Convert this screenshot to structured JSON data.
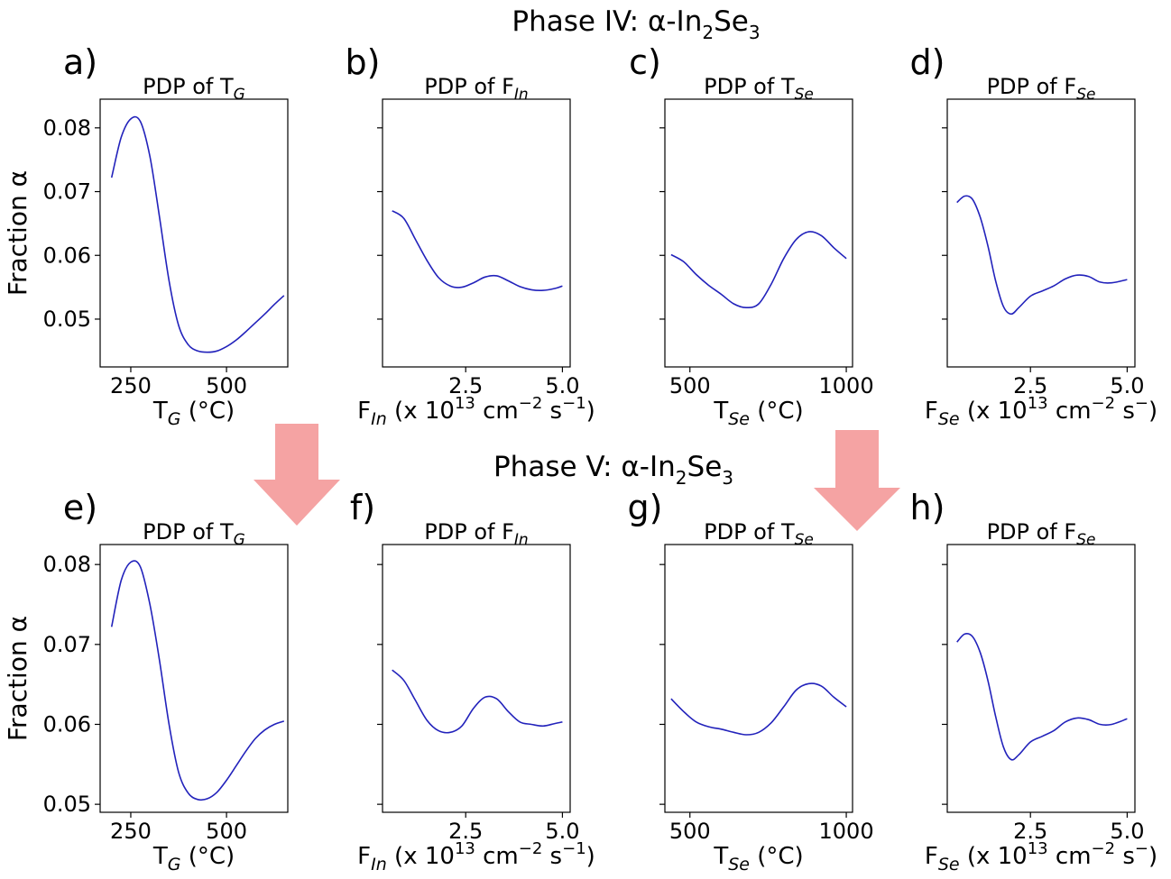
{
  "figure": {
    "phase_titles": [
      {
        "prefix": "Phase IV: α-In",
        "sub1": "2",
        "mid": "Se",
        "sub2": "3"
      },
      {
        "prefix": "Phase V: α-In",
        "sub1": "2",
        "mid": "Se",
        "sub2": "3"
      }
    ],
    "arrow_color": "#f5a3a3",
    "curve_color": "#2222bb"
  },
  "chart_data": [
    {
      "type": "line",
      "panel": "a)",
      "row": 0,
      "col": 0,
      "title": {
        "base": "PDP of T",
        "sub": "G"
      },
      "xlabel": {
        "base": "T",
        "sub": "G",
        "rest": " (°C)"
      },
      "ylabel": "Fraction α",
      "xlim": [
        170,
        660
      ],
      "ylim": [
        0.0425,
        0.0845
      ],
      "xticks": [
        250,
        500
      ],
      "xtick_labels": [
        "250",
        "500"
      ],
      "yticks": [
        0.05,
        0.06,
        0.07,
        0.08
      ],
      "ytick_labels": [
        "0.05",
        "0.06",
        "0.07",
        "0.08"
      ],
      "x": [
        200,
        225,
        250,
        275,
        300,
        325,
        350,
        375,
        400,
        425,
        450,
        475,
        500,
        525,
        550,
        575,
        600,
        625,
        650
      ],
      "y": [
        0.0722,
        0.0785,
        0.0814,
        0.081,
        0.0755,
        0.066,
        0.056,
        0.049,
        0.046,
        0.045,
        0.0448,
        0.045,
        0.0457,
        0.0467,
        0.048,
        0.0494,
        0.0508,
        0.0523,
        0.0537
      ]
    },
    {
      "type": "line",
      "panel": "b)",
      "row": 0,
      "col": 1,
      "title": {
        "base": "PDP of F",
        "sub": "In"
      },
      "xlabel": {
        "base": "F",
        "sub": "In",
        "rest": " (x 10",
        "sup": "13",
        "rest2": " cm",
        "sup2": "−2",
        "rest3": " s",
        "sup3": "−1",
        "rest4": ")"
      },
      "ylabel": "",
      "xlim": [
        0.35,
        5.2
      ],
      "ylim": [
        0.0425,
        0.0845
      ],
      "xticks": [
        2.5,
        5.0
      ],
      "xtick_labels": [
        "2.5",
        "5.0"
      ],
      "yticks": [
        0.05,
        0.06,
        0.07,
        0.08
      ],
      "ytick_labels": [],
      "x": [
        0.6,
        0.9,
        1.2,
        1.5,
        1.8,
        2.1,
        2.4,
        2.7,
        3.0,
        3.3,
        3.6,
        3.9,
        4.2,
        4.5,
        4.8,
        5.0
      ],
      "y": [
        0.067,
        0.0658,
        0.0625,
        0.0592,
        0.0565,
        0.0552,
        0.055,
        0.0557,
        0.0566,
        0.0568,
        0.056,
        0.0551,
        0.0546,
        0.0545,
        0.0548,
        0.0552
      ]
    },
    {
      "type": "line",
      "panel": "c)",
      "row": 0,
      "col": 2,
      "title": {
        "base": "PDP of T",
        "sub": "Se"
      },
      "xlabel": {
        "base": "T",
        "sub": "Se",
        "rest": " (°C)"
      },
      "ylabel": "",
      "xlim": [
        420,
        1020
      ],
      "ylim": [
        0.0425,
        0.0845
      ],
      "xticks": [
        500,
        1000
      ],
      "xtick_labels": [
        "500",
        "1000"
      ],
      "yticks": [
        0.05,
        0.06,
        0.07,
        0.08
      ],
      "ytick_labels": [],
      "x": [
        440,
        480,
        520,
        560,
        600,
        640,
        680,
        720,
        760,
        800,
        840,
        880,
        920,
        960,
        1000
      ],
      "y": [
        0.0601,
        0.059,
        0.057,
        0.0553,
        0.0539,
        0.0524,
        0.0518,
        0.0524,
        0.0555,
        0.0595,
        0.0625,
        0.0637,
        0.0631,
        0.0612,
        0.0595
      ]
    },
    {
      "type": "line",
      "panel": "d)",
      "row": 0,
      "col": 3,
      "title": {
        "base": "PDP of F",
        "sub": "Se"
      },
      "xlabel": {
        "base": "F",
        "sub": "Se",
        "rest": " (x 10",
        "sup": "13",
        "rest2": " cm",
        "sup2": "−2",
        "rest3": " s",
        "sup3": "−",
        "rest4": ")"
      },
      "ylabel": "",
      "xlim": [
        0.35,
        5.2
      ],
      "ylim": [
        0.0425,
        0.0845
      ],
      "xticks": [
        2.5,
        5.0
      ],
      "xtick_labels": [
        "2.5",
        "5.0"
      ],
      "yticks": [
        0.05,
        0.06,
        0.07,
        0.08
      ],
      "ytick_labels": [],
      "x": [
        0.6,
        0.8,
        1.0,
        1.2,
        1.4,
        1.6,
        1.8,
        2.0,
        2.2,
        2.5,
        2.8,
        3.1,
        3.4,
        3.7,
        4.0,
        4.3,
        4.6,
        5.0
      ],
      "y": [
        0.0683,
        0.0693,
        0.0688,
        0.066,
        0.0615,
        0.056,
        0.052,
        0.0508,
        0.0518,
        0.0536,
        0.0544,
        0.0552,
        0.0563,
        0.0569,
        0.0567,
        0.0558,
        0.0557,
        0.0562
      ]
    },
    {
      "type": "line",
      "panel": "e)",
      "row": 1,
      "col": 0,
      "title": {
        "base": "PDP of T",
        "sub": "G"
      },
      "xlabel": {
        "base": "T",
        "sub": "G",
        "rest": " (°C)"
      },
      "ylabel": "Fraction α",
      "xlim": [
        170,
        660
      ],
      "ylim": [
        0.049,
        0.0825
      ],
      "xticks": [
        250,
        500
      ],
      "xtick_labels": [
        "250",
        "500"
      ],
      "yticks": [
        0.05,
        0.06,
        0.07,
        0.08
      ],
      "ytick_labels": [
        "0.05",
        "0.06",
        "0.07",
        "0.08"
      ],
      "x": [
        200,
        225,
        250,
        275,
        300,
        325,
        350,
        375,
        400,
        425,
        450,
        475,
        500,
        525,
        550,
        575,
        600,
        625,
        650
      ],
      "y": [
        0.0722,
        0.078,
        0.0803,
        0.0797,
        0.075,
        0.068,
        0.06,
        0.054,
        0.0514,
        0.0506,
        0.0507,
        0.0515,
        0.053,
        0.0548,
        0.0566,
        0.0582,
        0.0593,
        0.06,
        0.0604
      ]
    },
    {
      "type": "line",
      "panel": "f)",
      "row": 1,
      "col": 1,
      "title": {
        "base": "PDP of F",
        "sub": "In"
      },
      "xlabel": {
        "base": "F",
        "sub": "In",
        "rest": " (x 10",
        "sup": "13",
        "rest2": " cm",
        "sup2": "−2",
        "rest3": " s",
        "sup3": "−1",
        "rest4": ")"
      },
      "ylabel": "",
      "xlim": [
        0.35,
        5.2
      ],
      "ylim": [
        0.049,
        0.0825
      ],
      "xticks": [
        2.5,
        5.0
      ],
      "xtick_labels": [
        "2.5",
        "5.0"
      ],
      "yticks": [
        0.05,
        0.06,
        0.07,
        0.08
      ],
      "ytick_labels": [],
      "x": [
        0.6,
        0.9,
        1.2,
        1.5,
        1.8,
        2.1,
        2.4,
        2.7,
        3.0,
        3.3,
        3.6,
        3.9,
        4.2,
        4.5,
        4.8,
        5.0
      ],
      "y": [
        0.0668,
        0.0655,
        0.063,
        0.0605,
        0.0592,
        0.059,
        0.0598,
        0.062,
        0.0634,
        0.0632,
        0.0616,
        0.0603,
        0.06,
        0.0598,
        0.0601,
        0.0603
      ]
    },
    {
      "type": "line",
      "panel": "g)",
      "row": 1,
      "col": 2,
      "title": {
        "base": "PDP of T",
        "sub": "Se"
      },
      "xlabel": {
        "base": "T",
        "sub": "Se",
        "rest": " (°C)"
      },
      "ylabel": "",
      "xlim": [
        420,
        1020
      ],
      "ylim": [
        0.049,
        0.0825
      ],
      "xticks": [
        500,
        1000
      ],
      "xtick_labels": [
        "500",
        "1000"
      ],
      "yticks": [
        0.05,
        0.06,
        0.07,
        0.08
      ],
      "ytick_labels": [],
      "x": [
        440,
        480,
        520,
        560,
        600,
        640,
        680,
        720,
        760,
        800,
        840,
        880,
        920,
        960,
        1000
      ],
      "y": [
        0.0632,
        0.0616,
        0.0603,
        0.0597,
        0.0594,
        0.059,
        0.0587,
        0.059,
        0.0602,
        0.0622,
        0.0643,
        0.0651,
        0.0648,
        0.0634,
        0.0622
      ]
    },
    {
      "type": "line",
      "panel": "h)",
      "row": 1,
      "col": 3,
      "title": {
        "base": "PDP of F",
        "sub": "Se"
      },
      "xlabel": {
        "base": "F",
        "sub": "Se",
        "rest": " (x 10",
        "sup": "13",
        "rest2": " cm",
        "sup2": "−2",
        "rest3": " s",
        "sup3": "−",
        "rest4": ")"
      },
      "ylabel": "",
      "xlim": [
        0.35,
        5.2
      ],
      "ylim": [
        0.049,
        0.0825
      ],
      "xticks": [
        2.5,
        5.0
      ],
      "xtick_labels": [
        "2.5",
        "5.0"
      ],
      "yticks": [
        0.05,
        0.06,
        0.07,
        0.08
      ],
      "ytick_labels": [],
      "x": [
        0.6,
        0.8,
        1.0,
        1.2,
        1.4,
        1.6,
        1.8,
        2.0,
        2.2,
        2.5,
        2.8,
        3.1,
        3.4,
        3.7,
        4.0,
        4.3,
        4.6,
        5.0
      ],
      "y": [
        0.0703,
        0.0713,
        0.071,
        0.069,
        0.0655,
        0.061,
        0.0572,
        0.0556,
        0.0562,
        0.0578,
        0.0585,
        0.0592,
        0.0603,
        0.0608,
        0.0606,
        0.06,
        0.06,
        0.0607
      ]
    }
  ]
}
